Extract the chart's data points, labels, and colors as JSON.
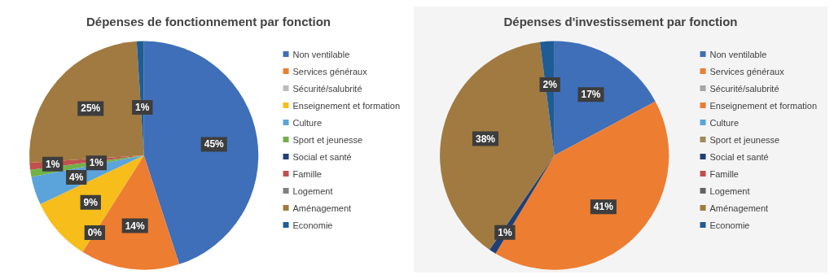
{
  "chart_data": [
    {
      "type": "pie",
      "title": "Dépenses de fonctionnement par fonction",
      "legend": "right",
      "categories": [
        "Non ventilable",
        "Services généraux",
        "Sécurité/salubrité",
        "Enseignement et formation",
        "Culture",
        "Sport et jeunesse",
        "Social et santé",
        "Famille",
        "Logement",
        "Aménagement",
        "Economie"
      ],
      "values": [
        45,
        14,
        0,
        9,
        4,
        1,
        0,
        1,
        0,
        25,
        1
      ],
      "value_labels": [
        "45%",
        "14%",
        "0%",
        "9%",
        "4%",
        "1%",
        null,
        "1%",
        null,
        "25%",
        "1%"
      ],
      "colors": [
        "#3f6fb8",
        "#ed7d31",
        "#bdbdbd",
        "#f6bd1b",
        "#5ba3db",
        "#72b04a",
        "#1f3f78",
        "#c0504d",
        "#808080",
        "#a07a40",
        "#1f5c96"
      ]
    },
    {
      "type": "pie",
      "title": "Dépenses d'investissement par fonction",
      "legend": "right",
      "categories": [
        "Non ventilable",
        "Services généraux",
        "Sécurité/salubrité",
        "Enseignement et formation",
        "Culture",
        "Sport et jeunesse",
        "Social et santé",
        "Famille",
        "Logement",
        "Aménagement",
        "Economie"
      ],
      "values": [
        17,
        41,
        0,
        0,
        0,
        0,
        1,
        0,
        0,
        38,
        2
      ],
      "value_labels": [
        "17%",
        "41%",
        null,
        null,
        null,
        null,
        "1%",
        null,
        null,
        "38%",
        "2%"
      ],
      "colors": [
        "#3f6fb8",
        "#ed7d31",
        "#a5a5a5",
        "#ed7d31",
        "#5ba3db",
        "#9e8a5a",
        "#1f3f78",
        "#c0504d",
        "#636363",
        "#a07a40",
        "#1f5c96"
      ]
    }
  ]
}
